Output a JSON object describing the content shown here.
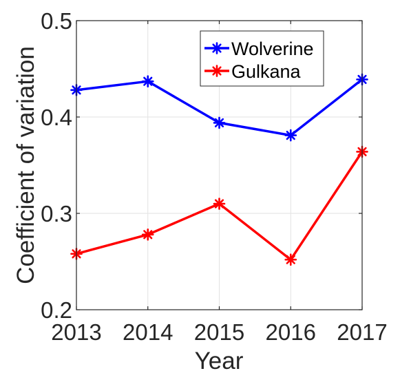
{
  "chart_data": {
    "type": "line",
    "x": [
      2013,
      2014,
      2015,
      2016,
      2017
    ],
    "xticks": [
      "2013",
      "2014",
      "2015",
      "2016",
      "2017"
    ],
    "yticks": [
      "0.2",
      "0.3",
      "0.4",
      "0.5"
    ],
    "xlim": [
      2013,
      2017
    ],
    "ylim": [
      0.2,
      0.5
    ],
    "xlabel": "Year",
    "ylabel": "Coefficient of variation",
    "grid": true,
    "legend_position": "top-right",
    "marker": "asterisk",
    "series": [
      {
        "name": "Wolverine",
        "color": "#0000ff",
        "values": [
          0.428,
          0.437,
          0.394,
          0.381,
          0.439
        ]
      },
      {
        "name": "Gulkana",
        "color": "#ff0000",
        "values": [
          0.258,
          0.278,
          0.31,
          0.252,
          0.364
        ]
      }
    ]
  }
}
